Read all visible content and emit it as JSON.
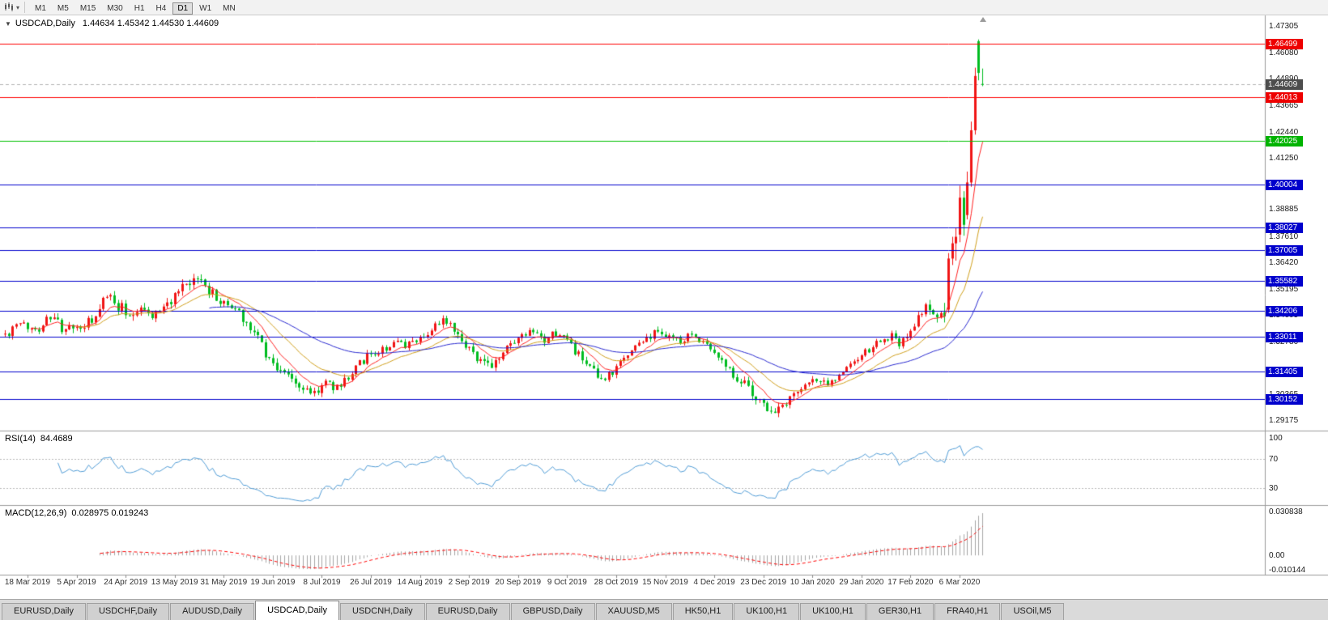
{
  "icons": {
    "collapse": "▼",
    "caret": "▾"
  },
  "toolbar": {
    "timeframes": [
      {
        "label": "M1",
        "active": false
      },
      {
        "label": "M5",
        "active": false
      },
      {
        "label": "M15",
        "active": false
      },
      {
        "label": "M30",
        "active": false
      },
      {
        "label": "H1",
        "active": false
      },
      {
        "label": "H4",
        "active": false
      },
      {
        "label": "D1",
        "active": true
      },
      {
        "label": "W1",
        "active": false
      },
      {
        "label": "MN",
        "active": false
      }
    ]
  },
  "chart_header": {
    "symbol": "USDCAD,Daily",
    "ohlc": "1.44634 1.45342 1.44530 1.44609"
  },
  "price_axis": {
    "ticks": [
      "1.47305",
      "1.46080",
      "1.44890",
      "1.43665",
      "1.42440",
      "1.41250",
      "1.38885",
      "1.37610",
      "1.36420",
      "1.35195",
      "1.34005",
      "1.32780",
      "1.30365",
      "1.29175"
    ],
    "badges": [
      {
        "label": "1.46499",
        "price": 1.46499,
        "bg": "#ee0000",
        "kind": "resistance-line"
      },
      {
        "label": "1.44609",
        "price": 1.44609,
        "bg": "#4d4d4d",
        "kind": "bid-price"
      },
      {
        "label": "1.44013",
        "price": 1.44013,
        "bg": "#ee0000",
        "kind": "resistance-line"
      },
      {
        "label": "1.42025",
        "price": 1.42025,
        "bg": "#00b300",
        "kind": "support-line"
      },
      {
        "label": "1.40004",
        "price": 1.40004,
        "bg": "#0000cc",
        "kind": "level-line"
      },
      {
        "label": "1.38027",
        "price": 1.38027,
        "bg": "#0000cc",
        "kind": "level-line"
      },
      {
        "label": "1.37005",
        "price": 1.37005,
        "bg": "#0000cc",
        "kind": "level-line"
      },
      {
        "label": "1.35582",
        "price": 1.35582,
        "bg": "#0000cc",
        "kind": "level-line"
      },
      {
        "label": "1.34206",
        "price": 1.34206,
        "bg": "#0000cc",
        "kind": "level-line"
      },
      {
        "label": "1.33011",
        "price": 1.33011,
        "bg": "#0000cc",
        "kind": "level-line"
      },
      {
        "label": "1.31405",
        "price": 1.31405,
        "bg": "#0000cc",
        "kind": "level-line"
      },
      {
        "label": "1.30152",
        "price": 1.30152,
        "bg": "#0000cc",
        "kind": "level-line"
      }
    ]
  },
  "rsi_panel": {
    "name": "RSI(14)",
    "value": "84.4689",
    "axis_labels": [
      "100",
      "70",
      "30"
    ],
    "levels": [
      70,
      30
    ],
    "line_color": "#4f9bd5"
  },
  "macd_panel": {
    "name": "MACD(12,26,9)",
    "values": "0.028975 0.019243",
    "axis_labels": [
      "0.030838",
      "0.00",
      "-0.010144"
    ],
    "hist_color": "#a6a6a6",
    "signal_color": "#ff0000"
  },
  "date_axis": {
    "labels": [
      "18 Mar 2019",
      "5 Apr 2019",
      "24 Apr 2019",
      "13 May 2019",
      "31 May 2019",
      "19 Jun 2019",
      "8 Jul 2019",
      "26 Jul 2019",
      "14 Aug 2019",
      "2 Sep 2019",
      "20 Sep 2019",
      "9 Oct 2019",
      "28 Oct 2019",
      "15 Nov 2019",
      "4 Dec 2019",
      "23 Dec 2019",
      "10 Jan 2020",
      "29 Jan 2020",
      "17 Feb 2020",
      "6 Mar 2020"
    ],
    "start_index": 6,
    "step": 13
  },
  "tabs": {
    "active_index": 3,
    "items": [
      "EURUSD,Daily",
      "USDCHF,Daily",
      "AUDUSD,Daily",
      "USDCAD,Daily",
      "USDCNH,Daily",
      "EURUSD,Daily",
      "GBPUSD,Daily",
      "XAUUSD,M5",
      "HK50,H1",
      "UK100,H1",
      "UK100,H1",
      "GER30,H1",
      "FRA40,H1",
      "USOil,M5"
    ],
    "active_label": "USDCAD,Daily"
  },
  "chart_data": {
    "type": "candlestick",
    "symbol": "USDCAD",
    "timeframe": "Daily",
    "price_range": [
      1.2872,
      1.4775
    ],
    "count": 260,
    "seed": 42,
    "base_vol": 0.003,
    "bull_color": "#f01414",
    "bear_color": "#00bc20",
    "bid_price": 1.44609,
    "close_path_anchors": [
      [
        0,
        1.331
      ],
      [
        4,
        1.3355
      ],
      [
        8,
        1.3335
      ],
      [
        12,
        1.339
      ],
      [
        16,
        1.333
      ],
      [
        20,
        1.3345
      ],
      [
        24,
        1.338
      ],
      [
        27,
        1.35
      ],
      [
        30,
        1.3445
      ],
      [
        33,
        1.3405
      ],
      [
        36,
        1.344
      ],
      [
        39,
        1.34
      ],
      [
        42,
        1.3435
      ],
      [
        45,
        1.348
      ],
      [
        48,
        1.353
      ],
      [
        51,
        1.356
      ],
      [
        53,
        1.3545
      ],
      [
        55,
        1.3495
      ],
      [
        58,
        1.345
      ],
      [
        61,
        1.343
      ],
      [
        64,
        1.337
      ],
      [
        67,
        1.33
      ],
      [
        70,
        1.32
      ],
      [
        73,
        1.3145
      ],
      [
        76,
        1.3105
      ],
      [
        79,
        1.306
      ],
      [
        82,
        1.3045
      ],
      [
        85,
        1.309
      ],
      [
        88,
        1.3065
      ],
      [
        91,
        1.312
      ],
      [
        94,
        1.3185
      ],
      [
        97,
        1.3215
      ],
      [
        100,
        1.324
      ],
      [
        103,
        1.327
      ],
      [
        106,
        1.3255
      ],
      [
        109,
        1.329
      ],
      [
        112,
        1.332
      ],
      [
        115,
        1.3355
      ],
      [
        117,
        1.338
      ],
      [
        119,
        1.3345
      ],
      [
        122,
        1.327
      ],
      [
        125,
        1.321
      ],
      [
        128,
        1.316
      ],
      [
        131,
        1.3205
      ],
      [
        134,
        1.3265
      ],
      [
        137,
        1.3295
      ],
      [
        140,
        1.3315
      ],
      [
        143,
        1.327
      ],
      [
        146,
        1.332
      ],
      [
        149,
        1.3285
      ],
      [
        152,
        1.3215
      ],
      [
        155,
        1.315
      ],
      [
        158,
        1.309
      ],
      [
        161,
        1.313
      ],
      [
        164,
        1.3205
      ],
      [
        167,
        1.3255
      ],
      [
        170,
        1.3295
      ],
      [
        173,
        1.332
      ],
      [
        176,
        1.3305
      ],
      [
        179,
        1.3275
      ],
      [
        182,
        1.331
      ],
      [
        185,
        1.3285
      ],
      [
        188,
        1.3235
      ],
      [
        191,
        1.3175
      ],
      [
        194,
        1.3115
      ],
      [
        197,
        1.3065
      ],
      [
        200,
        1.3005
      ],
      [
        202,
        1.297
      ],
      [
        205,
        1.296
      ],
      [
        208,
        1.302
      ],
      [
        211,
        1.307
      ],
      [
        214,
        1.31
      ],
      [
        217,
        1.3085
      ],
      [
        220,
        1.3105
      ],
      [
        223,
        1.3155
      ],
      [
        226,
        1.32
      ],
      [
        229,
        1.3235
      ],
      [
        232,
        1.328
      ],
      [
        235,
        1.33
      ],
      [
        237,
        1.3265
      ],
      [
        239,
        1.3295
      ],
      [
        241,
        1.335
      ],
      [
        243,
        1.342
      ],
      [
        245,
        1.3445
      ],
      [
        246,
        1.34
      ],
      [
        247,
        1.337
      ],
      [
        248,
        1.34
      ],
      [
        249,
        1.342
      ],
      [
        250,
        1.366
      ],
      [
        251,
        1.373
      ],
      [
        252,
        1.376
      ],
      [
        253,
        1.394
      ],
      [
        254,
        1.3815
      ],
      [
        255,
        1.401
      ],
      [
        256,
        1.425
      ],
      [
        257,
        1.45
      ],
      [
        258,
        1.4514
      ],
      [
        259,
        1.44609
      ]
    ],
    "vol_anchors": [
      [
        0,
        0.9
      ],
      [
        27,
        1.1
      ],
      [
        45,
        1.2
      ],
      [
        60,
        1.1
      ],
      [
        80,
        1.0
      ],
      [
        100,
        0.8
      ],
      [
        120,
        1.0
      ],
      [
        150,
        0.9
      ],
      [
        180,
        0.8
      ],
      [
        200,
        1.0
      ],
      [
        220,
        0.7
      ],
      [
        240,
        0.8
      ],
      [
        248,
        1.2
      ],
      [
        250,
        3.0
      ],
      [
        255,
        3.0
      ],
      [
        259,
        2.2
      ]
    ],
    "key_candles": {
      "250": [
        1.3425,
        1.3685,
        1.341,
        1.366
      ],
      "251": [
        1.366,
        1.376,
        1.363,
        1.373
      ],
      "252": [
        1.373,
        1.38,
        1.365,
        1.376
      ],
      "253": [
        1.377,
        1.3995,
        1.3735,
        1.394
      ],
      "254": [
        1.394,
        1.397,
        1.3765,
        1.3815
      ],
      "255": [
        1.386,
        1.406,
        1.384,
        1.401
      ],
      "256": [
        1.401,
        1.429,
        1.399,
        1.425
      ],
      "257": [
        1.425,
        1.4538,
        1.423,
        1.45
      ],
      "258": [
        1.466,
        1.4668,
        1.448,
        1.4514
      ],
      "259": [
        1.44634,
        1.45342,
        1.4453,
        1.44609
      ]
    },
    "moving_averages": [
      {
        "period": 8,
        "color": "#ff2020"
      },
      {
        "period": 20,
        "color": "#cf9e1a"
      },
      {
        "period": 55,
        "color": "#2828cf"
      }
    ],
    "hline_colors": {
      "resistance-line": "#ff0000",
      "support-line": "#00c000",
      "level-line": "#0000cc",
      "bid-price": "#b4b4b4"
    }
  }
}
